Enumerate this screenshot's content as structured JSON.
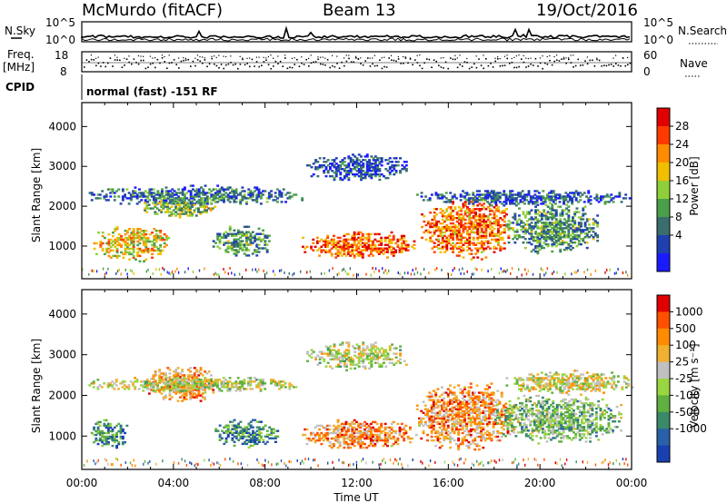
{
  "header": {
    "station": "McMurdo (fitACF)",
    "beam": "Beam 13",
    "date": "19/Oct/2016"
  },
  "top_panel": {
    "left_label": "N.Sky",
    "right_label": "N.Search",
    "left_ticks": [
      "10^5",
      "10^0"
    ],
    "right_ticks": [
      "10^5",
      "10^0"
    ]
  },
  "freq_panel": {
    "label_line1": "Freq.",
    "label_line2": "[MHz]",
    "left_ticks": [
      "18",
      "8"
    ],
    "right_ticks": [
      "60",
      "0"
    ],
    "right_label": "Nave"
  },
  "cpid": {
    "label": "CPID",
    "text": "normal (fast) -151 RF"
  },
  "chart_data": {
    "type": "heatmap",
    "xlabel": "Time UT",
    "ylabel": "Slant Range [km]",
    "x_ticks": [
      "00:00",
      "04:00",
      "08:00",
      "12:00",
      "16:00",
      "20:00",
      "00:00"
    ],
    "xlim_hours": [
      0,
      24
    ],
    "ylim_km": [
      180,
      4600
    ],
    "y_ticks": [
      1000,
      2000,
      3000,
      4000
    ],
    "panels": [
      {
        "name": "power",
        "colorbar_label": "Power [dB]",
        "colorbar_ticks": [
          "28",
          "24",
          "20",
          "16",
          "12",
          "8",
          "4"
        ],
        "colors": [
          "#1a1aff",
          "#2040b0",
          "#3a6e6e",
          "#4aa04a",
          "#8fcf3a",
          "#f0c000",
          "#ff8c00",
          "#ff3a00",
          "#e00000"
        ],
        "bands": [
          {
            "t0": 0.5,
            "t1": 3.8,
            "r0": 600,
            "r1": 1500,
            "level": 0.6
          },
          {
            "t0": 0.3,
            "t1": 9.6,
            "r0": 2000,
            "r1": 2500,
            "level": 0.25
          },
          {
            "t0": 2.7,
            "t1": 5.8,
            "r0": 1700,
            "r1": 2200,
            "level": 0.45
          },
          {
            "t0": 5.7,
            "t1": 8.2,
            "r0": 700,
            "r1": 1500,
            "level": 0.35
          },
          {
            "t0": 9.6,
            "t1": 14.6,
            "r0": 650,
            "r1": 1350,
            "level": 0.8
          },
          {
            "t0": 14.8,
            "t1": 18.6,
            "r0": 650,
            "r1": 2200,
            "level": 0.75
          },
          {
            "t0": 18.5,
            "t1": 22.5,
            "r0": 800,
            "r1": 2100,
            "level": 0.35
          },
          {
            "t0": 9.8,
            "t1": 14.2,
            "r0": 2600,
            "r1": 3300,
            "level": 0.2
          },
          {
            "t0": 14.6,
            "t1": 24.0,
            "r0": 2000,
            "r1": 2400,
            "level": 0.2
          }
        ]
      },
      {
        "name": "velocity",
        "colorbar_label": "Velocity [m s⁻¹]",
        "colorbar_ticks": [
          "1000",
          "500",
          "100",
          "25",
          "-25",
          "-100",
          "-500",
          "-1000"
        ],
        "colors": [
          "#1a40b0",
          "#2a60a8",
          "#3a8a6a",
          "#60b040",
          "#9ad640",
          "#c0c0c0",
          "#f0b030",
          "#ff8c00",
          "#ff5000",
          "#e00000"
        ],
        "bands": [
          {
            "t0": 0.3,
            "t1": 2.0,
            "r0": 650,
            "r1": 1400,
            "level": 0.25
          },
          {
            "t0": 2.8,
            "t1": 5.8,
            "r0": 1800,
            "r1": 2700,
            "level": 0.72
          },
          {
            "t0": 0.2,
            "t1": 9.5,
            "r0": 2050,
            "r1": 2450,
            "level": 0.5
          },
          {
            "t0": 5.8,
            "t1": 8.5,
            "r0": 700,
            "r1": 1400,
            "level": 0.25
          },
          {
            "t0": 9.6,
            "t1": 14.6,
            "r0": 650,
            "r1": 1400,
            "level": 0.72
          },
          {
            "t0": 14.5,
            "t1": 19.0,
            "r0": 650,
            "r1": 2300,
            "level": 0.72
          },
          {
            "t0": 18.0,
            "t1": 23.5,
            "r0": 800,
            "r1": 2000,
            "level": 0.4
          },
          {
            "t0": 9.8,
            "t1": 14.2,
            "r0": 2600,
            "r1": 3300,
            "level": 0.5
          },
          {
            "t0": 18.5,
            "t1": 24.0,
            "r0": 2000,
            "r1": 2600,
            "level": 0.55
          }
        ]
      }
    ]
  }
}
